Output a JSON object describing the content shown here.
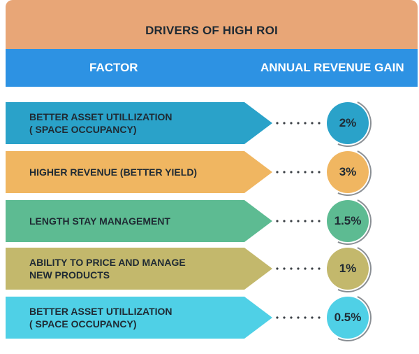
{
  "title": "DRIVERS OF HIGH ROI",
  "header": {
    "factor": "FACTOR",
    "gain": "ANNUAL REVENUE GAIN"
  },
  "rows": [
    {
      "factor": "BETTER ASSET UTILLIZATION\n( SPACE OCCUPANCY)",
      "gain": "2%",
      "color": "#2aa2c9"
    },
    {
      "factor": "HIGHER REVENUE (BETTER YIELD)",
      "gain": "3%",
      "color": "#f0b661"
    },
    {
      "factor": "LENGTH STAY MANAGEMENT",
      "gain": "1.5%",
      "color": "#5dbb92"
    },
    {
      "factor": "ABILITY TO PRICE AND MANAGE\nNEW PRODUCTS",
      "gain": "1%",
      "color": "#c3b86c"
    },
    {
      "factor": "BETTER ASSET UTILLIZATION\n( SPACE OCCUPANCY)",
      "gain": "0.5%",
      "color": "#4fd0e6"
    }
  ]
}
